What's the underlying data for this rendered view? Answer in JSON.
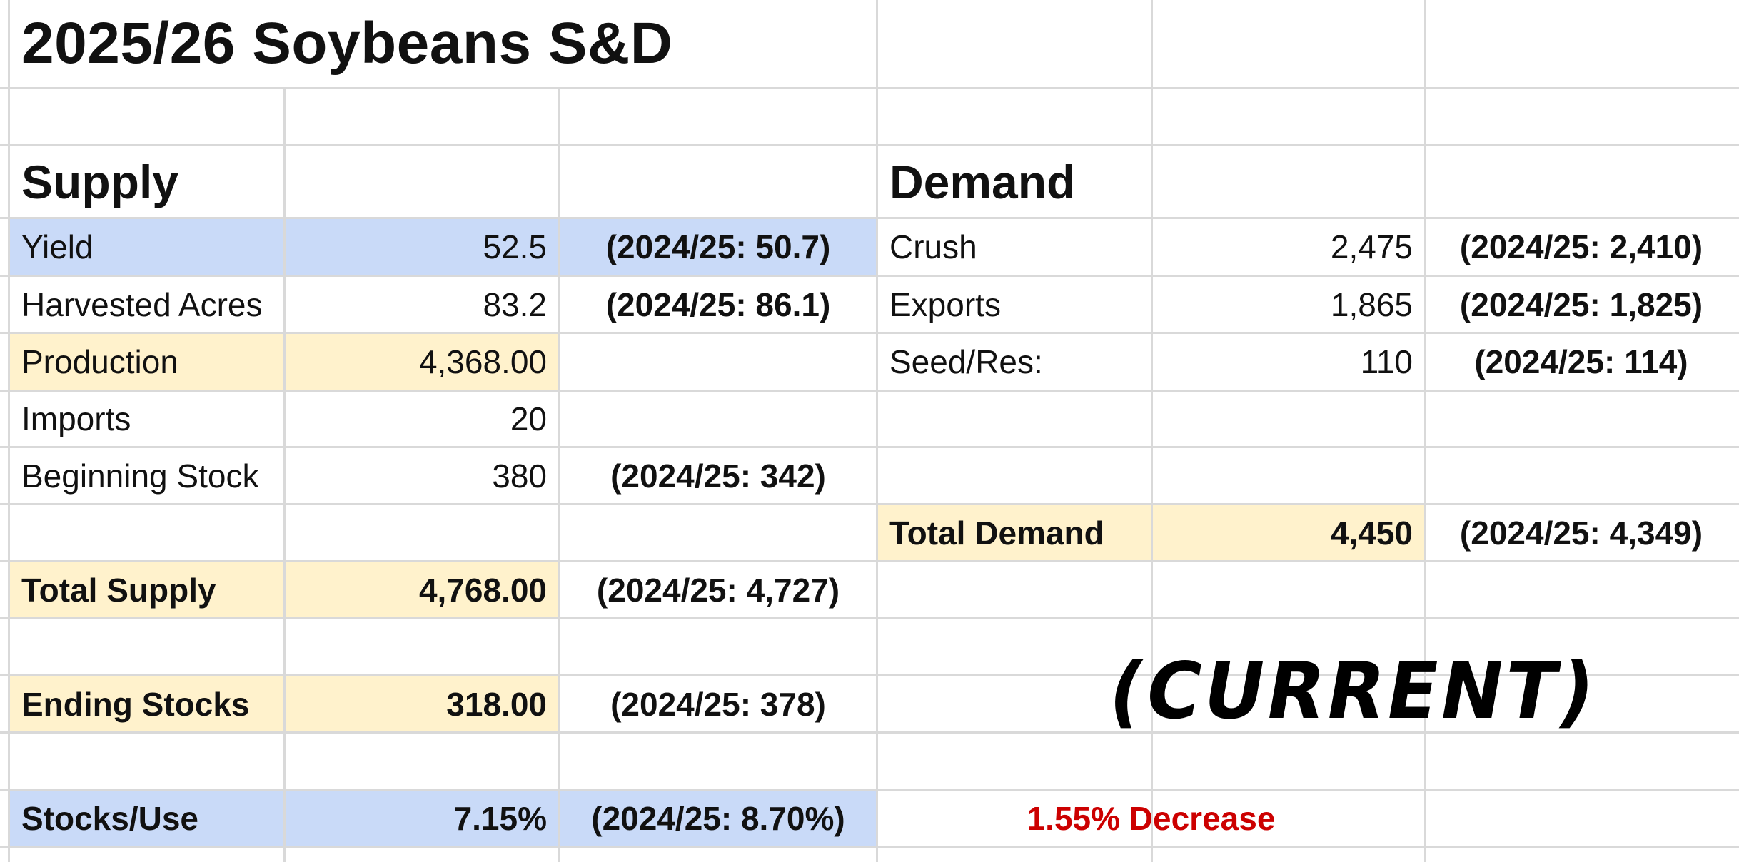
{
  "sheet": {
    "title": "2025/26 Soybeans S&D",
    "supply": {
      "heading": "Supply",
      "rows": {
        "yield": {
          "label": "Yield",
          "value": "52.5",
          "prior": "(2024/25: 50.7)"
        },
        "acres": {
          "label": "Harvested Acres",
          "value": "83.2",
          "prior": "(2024/25: 86.1)"
        },
        "production": {
          "label": "Production",
          "value": "4,368.00",
          "prior": ""
        },
        "imports": {
          "label": "Imports",
          "value": "20",
          "prior": ""
        },
        "beginning": {
          "label": "Beginning Stock",
          "value": "380",
          "prior": "(2024/25: 342)"
        },
        "total": {
          "label": "Total Supply",
          "value": "4,768.00",
          "prior": "(2024/25: 4,727)"
        },
        "ending": {
          "label": "Ending Stocks",
          "value": "318.00",
          "prior": "(2024/25: 378)"
        },
        "stocks_use": {
          "label": "Stocks/Use",
          "value": "7.15%",
          "prior": "(2024/25: 8.70%)"
        }
      }
    },
    "demand": {
      "heading": "Demand",
      "rows": {
        "crush": {
          "label": "Crush",
          "value": "2,475",
          "prior": "(2024/25: 2,410)"
        },
        "exports": {
          "label": "Exports",
          "value": "1,865",
          "prior": "(2024/25: 1,825)"
        },
        "seed": {
          "label": "Seed/Res:",
          "value": "110",
          "prior": "(2024/25: 114)"
        },
        "total": {
          "label": "Total Demand",
          "value": "4,450",
          "prior": "(2024/25: 4,349)"
        }
      }
    },
    "stamp": "(CURRENT)",
    "change": "1.55% Decrease",
    "colors": {
      "blue_fill": "#c9daf8",
      "yellow_fill": "#fff2cc",
      "decrease_text": "#cc0000"
    }
  }
}
